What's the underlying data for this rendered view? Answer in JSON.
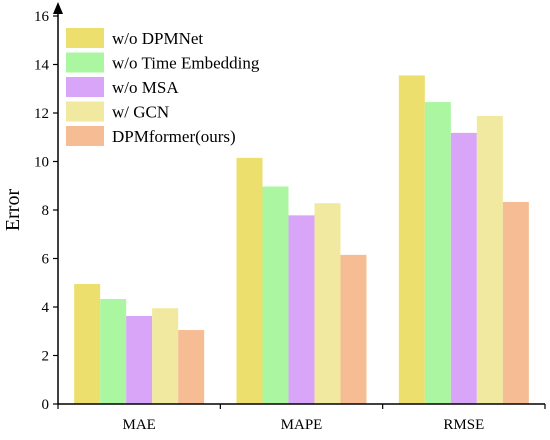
{
  "chart_data": {
    "type": "bar",
    "categories": [
      "MAE",
      "MAPE",
      "RMSE"
    ],
    "series": [
      {
        "name": "w/o DPMNet",
        "color": "#ECDF6E",
        "values": [
          4.95,
          10.15,
          13.55
        ]
      },
      {
        "name": "w/o Time Embedding",
        "color": "#ABF6A1",
        "values": [
          4.33,
          8.97,
          12.45
        ]
      },
      {
        "name": "w/o MSA",
        "color": "#D9A5F9",
        "values": [
          3.63,
          7.78,
          11.18
        ]
      },
      {
        "name": "w/ GCN",
        "color": "#F1E9A0",
        "values": [
          3.95,
          8.28,
          11.88
        ]
      },
      {
        "name": "DPMformer(ours)",
        "color": "#F6BD95",
        "values": [
          3.05,
          6.15,
          8.33
        ]
      }
    ],
    "ylabel": "Error",
    "xlabel": "",
    "ylim": [
      0,
      16
    ],
    "yticks": [
      0,
      2,
      4,
      6,
      8,
      10,
      12,
      14,
      16
    ],
    "grid": false,
    "legend": "top-left"
  }
}
